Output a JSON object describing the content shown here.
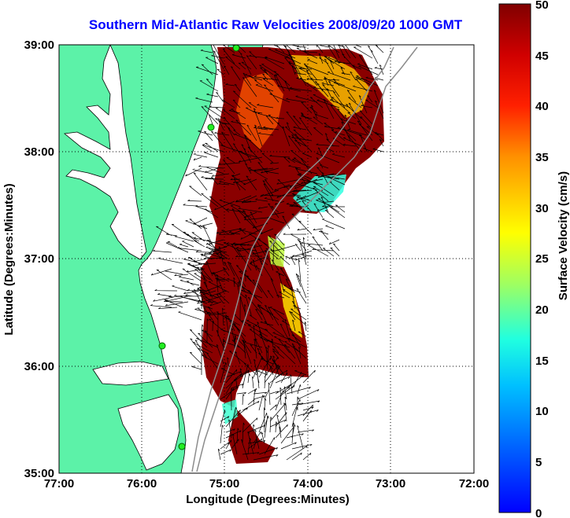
{
  "title": "Southern Mid-Atlantic Raw Velocities 2008/09/20 1000 GMT",
  "x_axis": {
    "label": "Longitude (Degrees:Minutes)",
    "ticks": [
      "77:00",
      "76:00",
      "75:00",
      "74:00",
      "73:00",
      "72:00"
    ],
    "values": [
      -77,
      -76,
      -75,
      -74,
      -73,
      -72
    ]
  },
  "y_axis": {
    "label": "Latitude (Degrees:Minutes)",
    "ticks": [
      "39:00",
      "38:00",
      "37:00",
      "36:00",
      "35:00"
    ],
    "values": [
      39,
      38,
      37,
      36,
      35
    ]
  },
  "colorbar": {
    "label": "Surface Velocity (cm/s)",
    "ticks": [
      "50",
      "45",
      "40",
      "35",
      "30",
      "25",
      "20",
      "15",
      "10",
      "5",
      "0"
    ],
    "min": 0,
    "max": 50
  },
  "grid": "dotted",
  "colors": {
    "land": "#5cf2a8",
    "ocean": "#ffffff",
    "title": "#0000ff",
    "arrows": "#000000",
    "stations": "#22ee22"
  }
}
